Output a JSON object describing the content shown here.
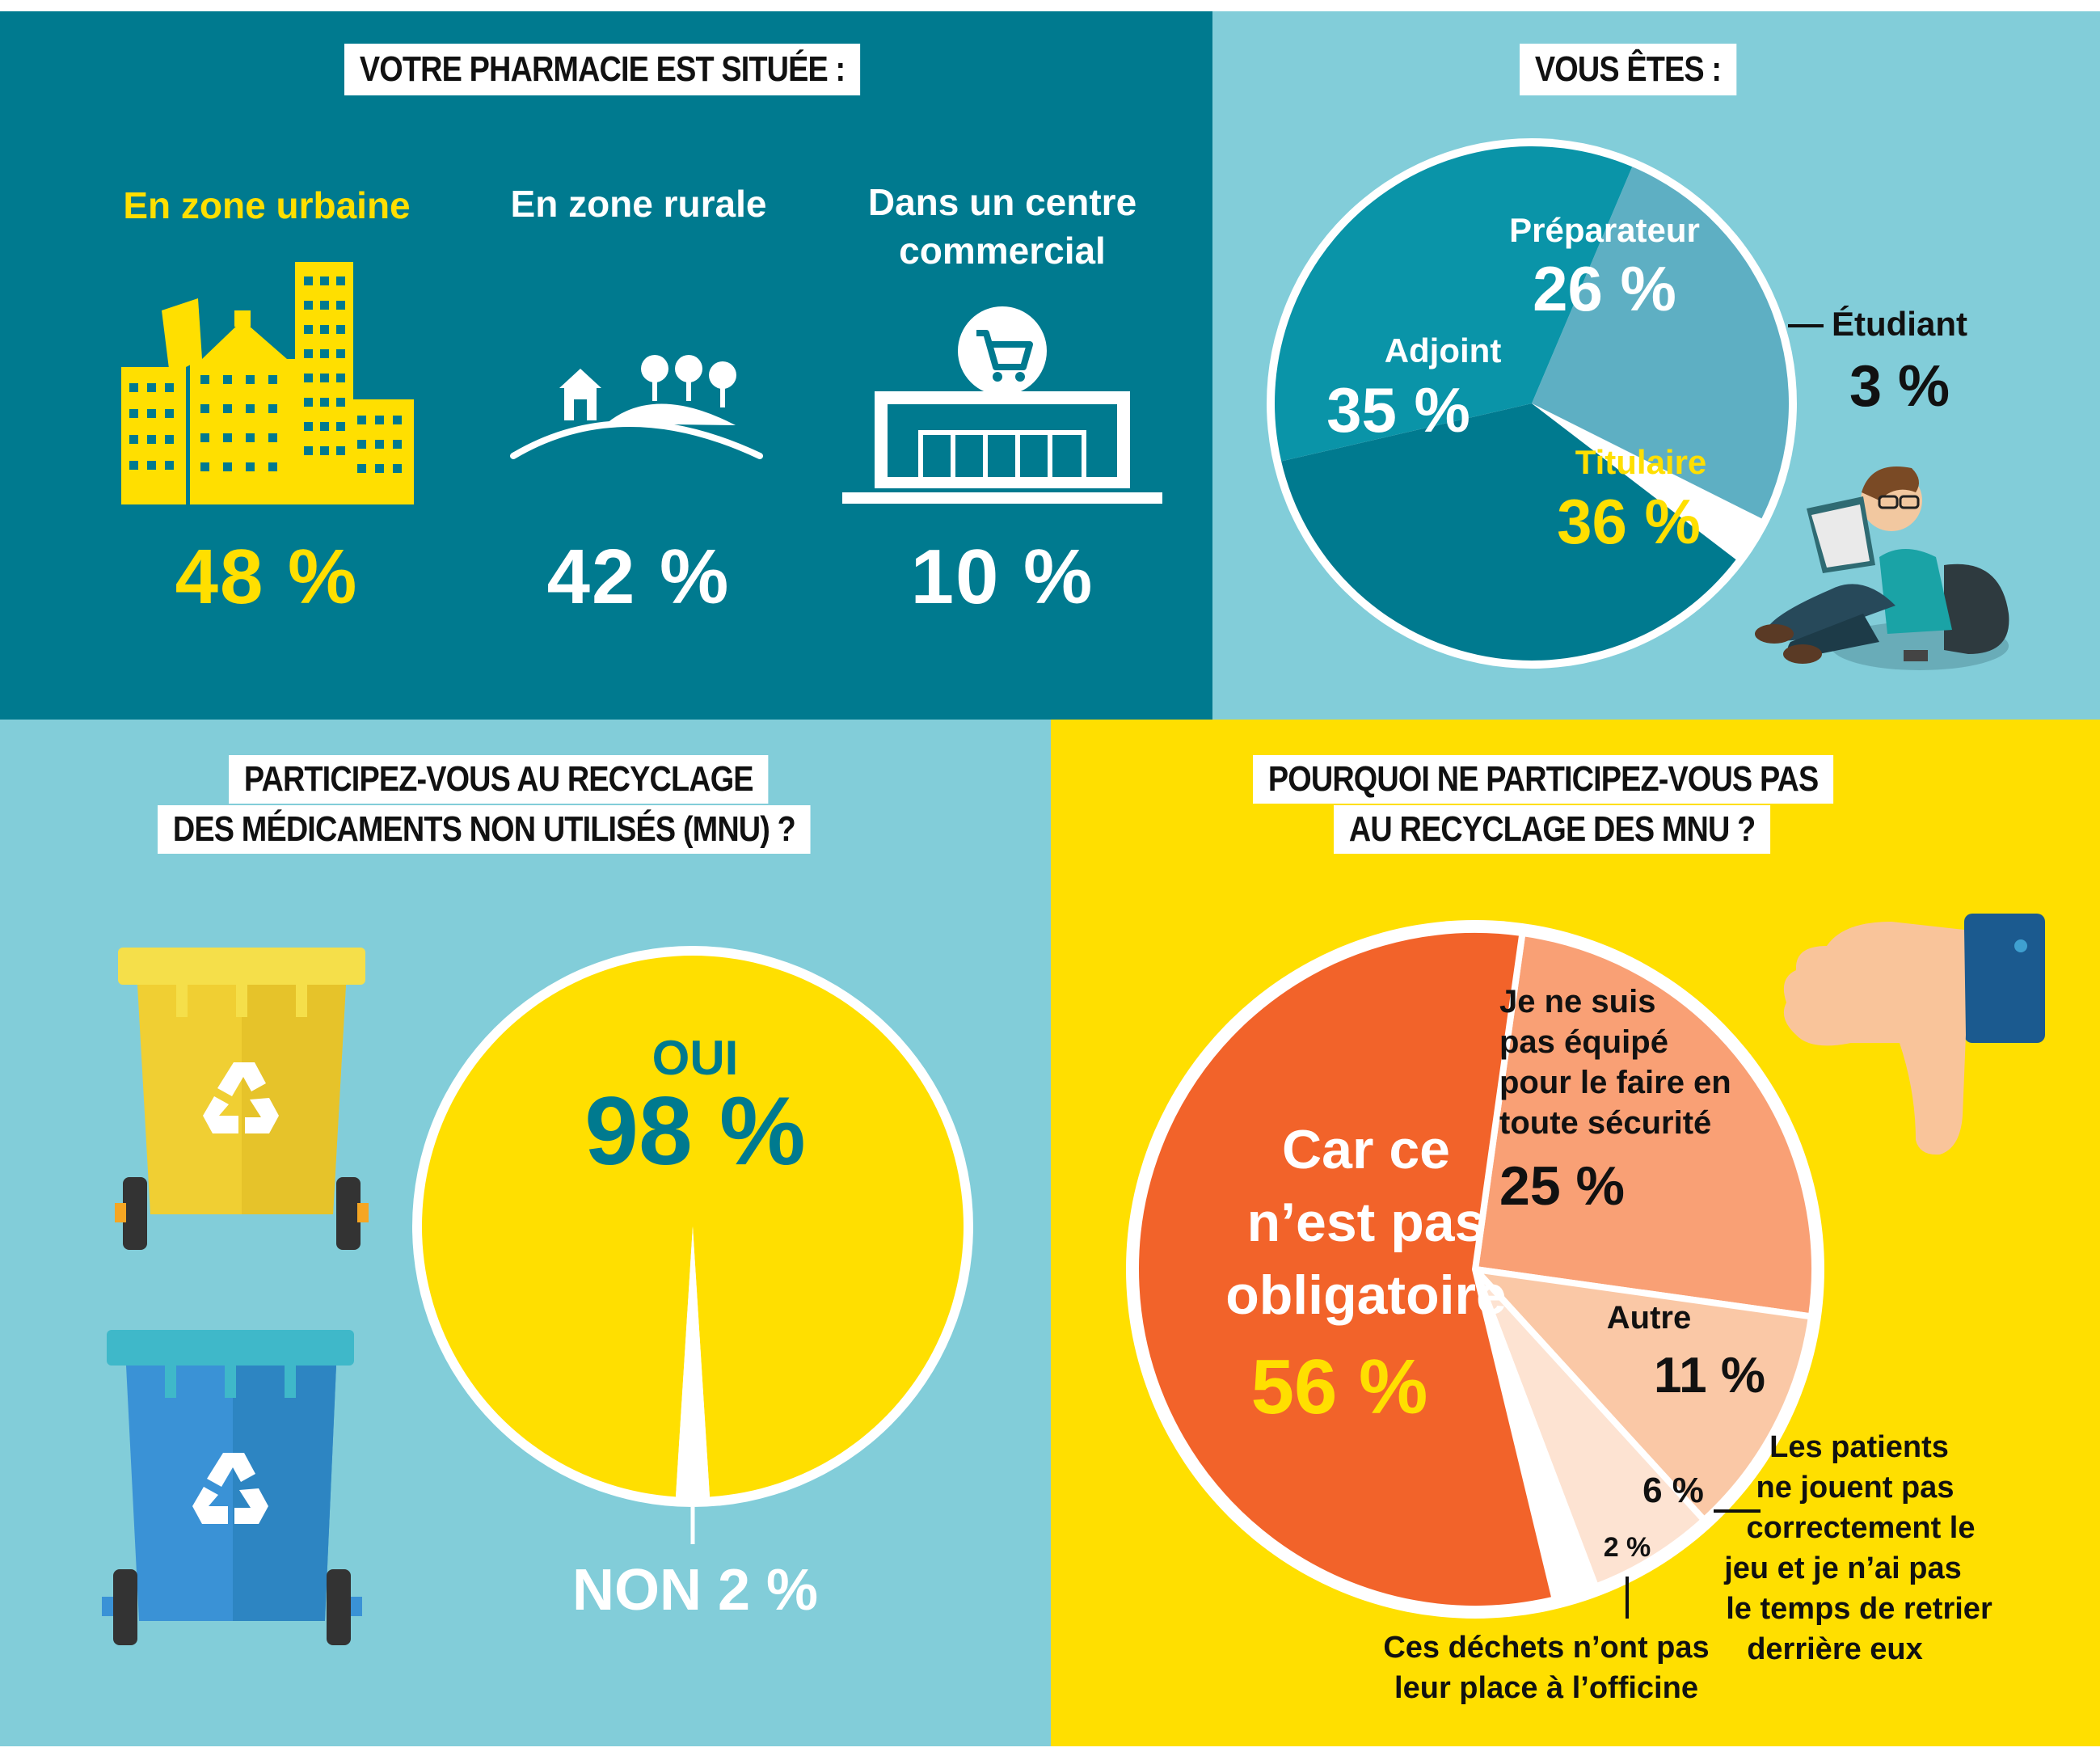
{
  "colors": {
    "dark_teal": "#007a8f",
    "light_teal": "#82cdd9",
    "yellow": "#ffdf00",
    "white": "#ffffff",
    "orange": "#f2632a",
    "salmon": "#f9a075",
    "peach": "#fac8a6",
    "pale_peach": "#fde3d2"
  },
  "icons": [
    "city-buildings-icon",
    "rural-house-trees-icon",
    "shopping-center-cart-icon",
    "student-reading-illustration",
    "yellow-recycle-bin-icon",
    "blue-recycle-bin-icon",
    "recycle-symbol-icon",
    "thumbs-down-icon"
  ],
  "location": {
    "title": "VOTRE PHARMACIE EST SITUÉE :",
    "zones": [
      {
        "label_lines": [
          "En zone urbaine"
        ],
        "pct": "48 %"
      },
      {
        "label_lines": [
          "En zone rurale"
        ],
        "pct": "42 %"
      },
      {
        "label_lines": [
          "Dans un centre",
          "commercial"
        ],
        "pct": "10 %"
      }
    ]
  },
  "role": {
    "title": "VOUS ÊTES :"
  },
  "recycle": {
    "title_lines": [
      "PARTICIPEZ-VOUS AU RECYCLAGE",
      "DES MÉDICAMENTS NON UTILISÉS (MNU) ?"
    ],
    "oui_label": "OUI",
    "oui_pct": "98 %",
    "non_text": "NON 2 %"
  },
  "why": {
    "title_lines": [
      "POURQUOI NE PARTICIPEZ-VOUS PAS",
      "AU RECYCLAGE DES MNU ?"
    ]
  },
  "chart_data": [
    {
      "type": "bar",
      "title": "VOTRE PHARMACIE EST SITUÉE :",
      "categories": [
        "En zone urbaine",
        "En zone rurale",
        "Dans un centre commercial"
      ],
      "values": [
        48,
        42,
        10
      ],
      "unit": "%"
    },
    {
      "type": "pie",
      "title": "VOUS ÊTES :",
      "slices": [
        {
          "label": "Préparateur",
          "value": 26,
          "pct_text": "26 %"
        },
        {
          "label": "Étudiant",
          "value": 3,
          "pct_text": "3 %"
        },
        {
          "label": "Titulaire",
          "value": 36,
          "pct_text": "36 %"
        },
        {
          "label": "Adjoint",
          "value": 35,
          "pct_text": "35 %"
        }
      ]
    },
    {
      "type": "pie",
      "title": "PARTICIPEZ-VOUS AU RECYCLAGE DES MÉDICAMENTS NON UTILISÉS (MNU) ?",
      "slices": [
        {
          "label": "OUI",
          "value": 98
        },
        {
          "label": "NON",
          "value": 2
        }
      ]
    },
    {
      "type": "pie",
      "title": "POURQUOI NE PARTICIPEZ-VOUS PAS AU RECYCLAGE DES MNU ?",
      "slices": [
        {
          "label_lines": [
            "Je ne suis",
            "pas équipé",
            "pour le faire en",
            "toute sécurité"
          ],
          "value": 25,
          "pct_text": "25 %"
        },
        {
          "label_lines": [
            "Autre"
          ],
          "value": 11,
          "pct_text": "11 %"
        },
        {
          "label_lines": [
            "Les patients",
            "ne jouent pas",
            "correctement le",
            "jeu et je n’ai pas",
            "le temps de retrier",
            "derrière eux"
          ],
          "value": 6,
          "pct_text": "6 %"
        },
        {
          "label_lines": [
            "Ces déchets n’ont pas",
            "leur place à l’officine"
          ],
          "value": 2,
          "pct_text": "2 %"
        },
        {
          "label_lines": [
            "Car ce",
            "n’est pas",
            "obligatoire"
          ],
          "value": 56,
          "pct_text": "56 %"
        }
      ]
    }
  ]
}
